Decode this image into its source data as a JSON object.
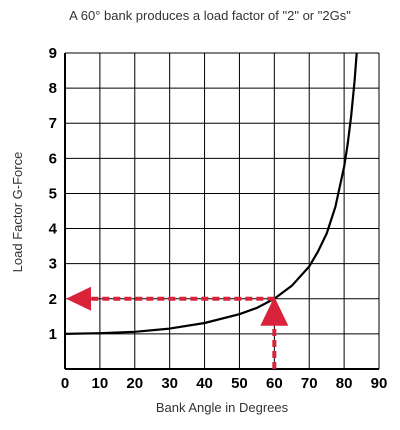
{
  "chart_data": {
    "type": "line",
    "title": "A 60° bank produces a load factor of \"2\" or \"2Gs\"",
    "xlabel": "Bank Angle in Degrees",
    "ylabel": "Load Factor G-Force",
    "xlim": [
      0,
      90
    ],
    "ylim": [
      0,
      9
    ],
    "x_ticks": [
      "0",
      "10",
      "20",
      "30",
      "40",
      "50",
      "60",
      "70",
      "80",
      "90"
    ],
    "y_ticks": [
      "1",
      "2",
      "3",
      "4",
      "5",
      "6",
      "7",
      "8",
      "9"
    ],
    "grid": true,
    "series": [
      {
        "x": [
          0,
          10,
          20,
          30,
          40,
          50,
          55,
          60,
          65,
          70,
          72.5,
          75,
          77.5,
          80,
          81,
          82,
          83,
          83.6
        ],
        "y": [
          1.0,
          1.02,
          1.06,
          1.15,
          1.31,
          1.56,
          1.74,
          2.0,
          2.37,
          2.92,
          3.34,
          3.86,
          4.62,
          5.76,
          6.39,
          7.19,
          8.21,
          9.0
        ]
      }
    ],
    "annotation": {
      "x": 60,
      "y": 2,
      "style": "dashed-arrows",
      "color": "#d8233a"
    },
    "colors": {
      "curve": "#000000",
      "grid": "#000000",
      "annotation": "#d8233a"
    }
  }
}
